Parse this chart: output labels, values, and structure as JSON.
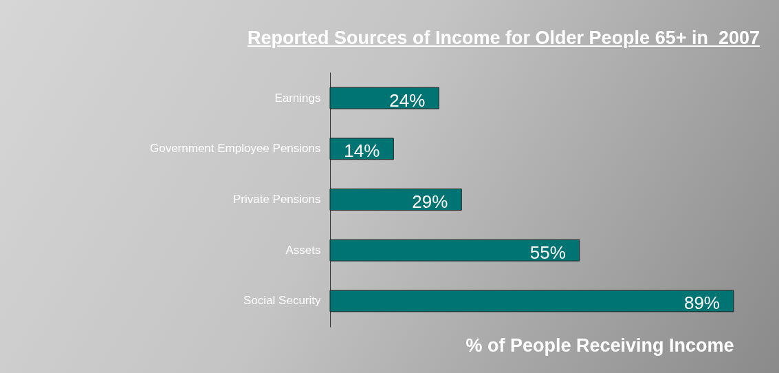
{
  "chart_data": {
    "type": "bar",
    "orientation": "horizontal",
    "title": "Reported Sources of Income for Older People 65+ in  2007",
    "xlabel": "% of People Receiving Income",
    "categories": [
      "Earnings",
      "Government  Employee Pensions",
      "Private Pensions",
      "Assets",
      "Social Security"
    ],
    "values": [
      24,
      14,
      29,
      55,
      89
    ],
    "value_labels": [
      "24%",
      "14%",
      "29%",
      "55%",
      "89%"
    ],
    "color": "#007373",
    "grid": false
  }
}
